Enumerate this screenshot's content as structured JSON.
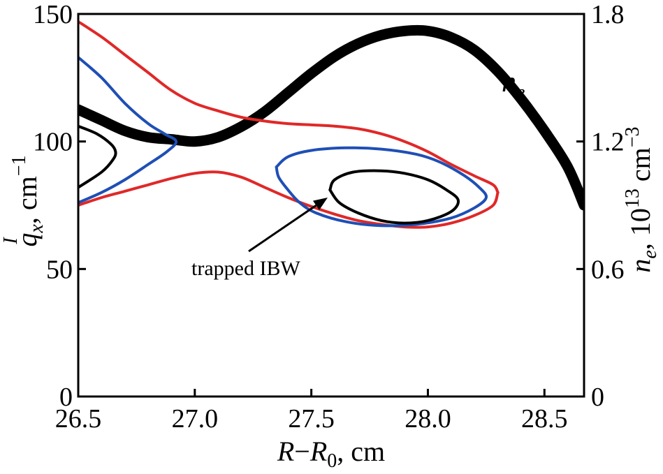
{
  "chart_data": {
    "type": "line",
    "x_axis": {
      "label_main": "R",
      "label_dash": "−",
      "label_ref": "R",
      "label_ref_sub": "0",
      "label_unit": ", cm",
      "range": [
        26.5,
        28.67
      ],
      "ticks": [
        26.5,
        27.0,
        27.5,
        28.0,
        28.5
      ],
      "tick_labels": [
        "26.5",
        "27.0",
        "27.5",
        "28.0",
        "28.5"
      ]
    },
    "y_left_axis": {
      "label_main": "q",
      "label_sub": "x",
      "label_sup": "I",
      "label_unit": ", cm",
      "label_unit_sup": "−1",
      "range": [
        0,
        150
      ],
      "ticks": [
        0,
        50,
        100,
        150
      ],
      "tick_labels": [
        "0",
        "50",
        "100",
        "150"
      ]
    },
    "y_right_axis": {
      "label_main": "n",
      "label_sub": "e",
      "label_unit_a": ", 10",
      "label_unit_a_sup": "13",
      "label_unit_b": " cm",
      "label_unit_b_sup": "−3",
      "range": [
        0,
        1.8
      ],
      "ticks": [
        0,
        0.6,
        1.2,
        1.8
      ],
      "tick_labels": [
        "0",
        "0.6",
        "1.2",
        "1.8"
      ]
    },
    "annotations": [
      {
        "text": "trapped IBW"
      }
    ],
    "series_label": {
      "main": "n",
      "sub": "e"
    },
    "colors": {
      "red": "#e02828",
      "blue": "#1f4fb5",
      "black": "#000000"
    },
    "series": [
      {
        "id": "ne-profile",
        "color": "#000000",
        "axis": "right",
        "width": "thick",
        "points": [
          [
            26.5,
            1.35
          ],
          [
            26.6,
            1.3
          ],
          [
            26.7,
            1.25
          ],
          [
            26.8,
            1.22
          ],
          [
            26.9,
            1.21
          ],
          [
            27.0,
            1.2
          ],
          [
            27.1,
            1.22
          ],
          [
            27.2,
            1.27
          ],
          [
            27.3,
            1.34
          ],
          [
            27.4,
            1.43
          ],
          [
            27.5,
            1.52
          ],
          [
            27.6,
            1.6
          ],
          [
            27.7,
            1.66
          ],
          [
            27.8,
            1.7
          ],
          [
            27.9,
            1.72
          ],
          [
            28.0,
            1.72
          ],
          [
            28.1,
            1.69
          ],
          [
            28.2,
            1.63
          ],
          [
            28.3,
            1.53
          ],
          [
            28.4,
            1.4
          ],
          [
            28.5,
            1.25
          ],
          [
            28.6,
            1.08
          ],
          [
            28.67,
            0.9
          ]
        ]
      },
      {
        "id": "red-upper",
        "color": "#e02828",
        "axis": "left",
        "points": [
          [
            26.5,
            147
          ],
          [
            26.6,
            141
          ],
          [
            26.7,
            134
          ],
          [
            26.8,
            127
          ],
          [
            26.9,
            120
          ],
          [
            27.0,
            115
          ],
          [
            27.1,
            112
          ],
          [
            27.2,
            109.5
          ],
          [
            27.3,
            108
          ],
          [
            27.4,
            107
          ],
          [
            27.5,
            106.5
          ],
          [
            27.6,
            106
          ],
          [
            27.7,
            105
          ],
          [
            27.8,
            103
          ],
          [
            27.9,
            100
          ],
          [
            28.0,
            96
          ],
          [
            28.1,
            91
          ],
          [
            28.2,
            86.5
          ],
          [
            28.28,
            83
          ],
          [
            28.3,
            80
          ]
        ]
      },
      {
        "id": "red-lower",
        "color": "#e02828",
        "axis": "left",
        "points": [
          [
            26.5,
            75
          ],
          [
            26.6,
            78
          ],
          [
            26.7,
            80.5
          ],
          [
            26.8,
            83
          ],
          [
            26.9,
            85.5
          ],
          [
            27.0,
            87.5
          ],
          [
            27.1,
            88
          ],
          [
            27.2,
            86
          ],
          [
            27.3,
            82
          ],
          [
            27.4,
            78
          ],
          [
            27.5,
            74.5
          ],
          [
            27.6,
            71.5
          ],
          [
            27.7,
            69
          ],
          [
            27.8,
            67.5
          ],
          [
            27.9,
            66.5
          ],
          [
            28.0,
            66.5
          ],
          [
            28.1,
            68
          ],
          [
            28.2,
            71
          ],
          [
            28.28,
            75
          ],
          [
            28.3,
            80
          ]
        ]
      },
      {
        "id": "blue-left",
        "color": "#1f4fb5",
        "axis": "left",
        "points": [
          [
            26.5,
            133
          ],
          [
            26.6,
            125
          ],
          [
            26.7,
            115
          ],
          [
            26.8,
            107
          ],
          [
            26.87,
            103
          ],
          [
            26.92,
            100
          ],
          [
            26.88,
            96
          ],
          [
            26.8,
            91
          ],
          [
            26.7,
            85
          ],
          [
            26.6,
            80
          ],
          [
            26.5,
            76
          ]
        ]
      },
      {
        "id": "blue-loop",
        "color": "#1f4fb5",
        "axis": "left",
        "points": [
          [
            27.35,
            90
          ],
          [
            27.4,
            94
          ],
          [
            27.5,
            96.5
          ],
          [
            27.65,
            97.5
          ],
          [
            27.8,
            97
          ],
          [
            27.95,
            95
          ],
          [
            28.05,
            92
          ],
          [
            28.15,
            87
          ],
          [
            28.22,
            82
          ],
          [
            28.25,
            78
          ],
          [
            28.2,
            74
          ],
          [
            28.1,
            70
          ],
          [
            27.95,
            67.5
          ],
          [
            27.8,
            67
          ],
          [
            27.65,
            68.5
          ],
          [
            27.52,
            72
          ],
          [
            27.45,
            76
          ],
          [
            27.4,
            81
          ],
          [
            27.36,
            86
          ],
          [
            27.35,
            90
          ]
        ]
      },
      {
        "id": "black-left",
        "color": "#000000",
        "axis": "left",
        "points": [
          [
            26.5,
            106
          ],
          [
            26.58,
            103
          ],
          [
            26.64,
            99
          ],
          [
            26.66,
            96
          ],
          [
            26.65,
            93
          ],
          [
            26.6,
            88
          ],
          [
            26.5,
            82
          ]
        ]
      },
      {
        "id": "black-loop",
        "color": "#000000",
        "axis": "left",
        "points": [
          [
            27.58,
            81
          ],
          [
            27.6,
            85
          ],
          [
            27.68,
            88
          ],
          [
            27.8,
            88.5
          ],
          [
            27.9,
            87.5
          ],
          [
            28.0,
            85
          ],
          [
            28.08,
            81
          ],
          [
            28.13,
            77
          ],
          [
            28.1,
            72.5
          ],
          [
            28.0,
            69
          ],
          [
            27.9,
            68
          ],
          [
            27.8,
            69
          ],
          [
            27.7,
            72
          ],
          [
            27.62,
            76
          ],
          [
            27.58,
            81
          ]
        ]
      }
    ]
  }
}
